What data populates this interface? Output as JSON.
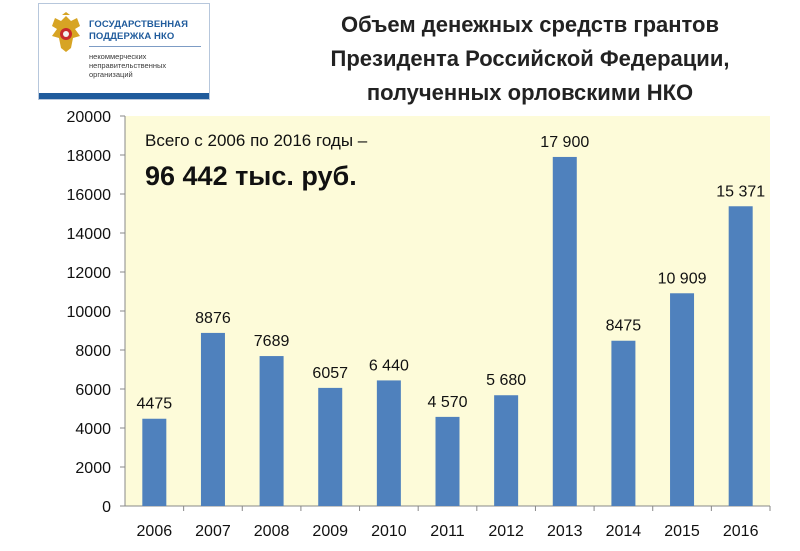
{
  "logo": {
    "title": "ГОСУДАРСТВЕННАЯ ПОДДЕРЖКА НКО",
    "subtitle": "некоммерческих неправительственных организаций",
    "emblem_icon": "russian-coat-of-arms-icon"
  },
  "title_lines": [
    "Объем денежных средств грантов",
    "Президента Российской Федерации,",
    "полученных орловскими НКО"
  ],
  "note": {
    "line1": "Всего с 2006  по 2016 годы –",
    "line2": "96 442 тыс. руб."
  },
  "colors": {
    "bar": "#4f81bd",
    "plot_bg": "#fdfbd9"
  },
  "chart_data": {
    "type": "bar",
    "title": "Объем денежных средств грантов Президента Российской Федерации, полученных орловскими НКО",
    "categories": [
      "2006",
      "2007",
      "2008",
      "2009",
      "2010",
      "2011",
      "2012",
      "2013",
      "2014",
      "2015",
      "2016"
    ],
    "values": [
      4475,
      8876,
      7689,
      6057,
      6440,
      4570,
      5680,
      17900,
      8475,
      10909,
      15371
    ],
    "value_labels": [
      "4475",
      "8876",
      "7689",
      "6057",
      "6 440",
      "4 570",
      "5 680",
      "17 900",
      "8475",
      "10 909",
      "15 371"
    ],
    "ylim": [
      0,
      20000
    ],
    "yticks": [
      0,
      2000,
      4000,
      6000,
      8000,
      10000,
      12000,
      14000,
      16000,
      18000,
      20000
    ],
    "ytick_labels": [
      "0",
      "2000",
      "4000",
      "6000",
      "8000",
      "10000",
      "12000",
      "14000",
      "16000",
      "18000",
      "20000"
    ],
    "xlabel": "",
    "ylabel": "",
    "grid": false,
    "legend": "none"
  }
}
